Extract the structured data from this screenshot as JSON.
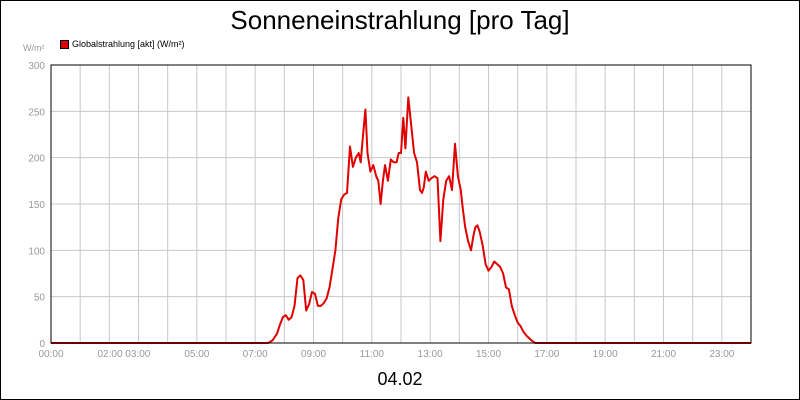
{
  "title": "Sonneneinstrahlung [pro Tag]",
  "date_label": "04.02",
  "unit_label": "W/m²",
  "legend_label": "Globalstrahlung [akt] (W/m²)",
  "colors": {
    "series": "#e10000",
    "grid": "#c8c8c8",
    "axis_text": "#999999",
    "frame": "#000000"
  },
  "chart_data": {
    "type": "line",
    "title": "Sonneneinstrahlung [pro Tag]",
    "xlabel": "04.02",
    "ylabel": "W/m²",
    "xlim": [
      0,
      24
    ],
    "ylim": [
      0,
      300
    ],
    "grid": true,
    "legend_position": "top-left",
    "y_ticks": [
      "0",
      "50",
      "100",
      "150",
      "200",
      "250",
      "300"
    ],
    "x_ticks": [
      {
        "x": 0,
        "label": "00:00"
      },
      {
        "x": 2.5,
        "label": "02:00 03:00"
      },
      {
        "x": 5,
        "label": "05:00"
      },
      {
        "x": 7,
        "label": "07:00"
      },
      {
        "x": 9,
        "label": "09:00"
      },
      {
        "x": 11,
        "label": "11:00"
      },
      {
        "x": 13,
        "label": "13:00"
      },
      {
        "x": 15,
        "label": "15:00"
      },
      {
        "x": 17,
        "label": "17:00"
      },
      {
        "x": 19,
        "label": "19:00"
      },
      {
        "x": 21,
        "label": "21:00"
      },
      {
        "x": 23,
        "label": "23:00"
      }
    ],
    "x_grid": [
      0,
      1,
      2,
      3,
      4,
      5,
      6,
      7,
      8,
      9,
      10,
      11,
      12,
      13,
      14,
      15,
      16,
      17,
      18,
      19,
      20,
      21,
      22,
      23,
      24
    ],
    "series": [
      {
        "name": "Globalstrahlung [akt] (W/m²)",
        "x": [
          0,
          7.45,
          7.6,
          7.75,
          7.85,
          7.95,
          8.05,
          8.15,
          8.25,
          8.35,
          8.45,
          8.55,
          8.65,
          8.75,
          8.85,
          8.95,
          9.05,
          9.15,
          9.25,
          9.35,
          9.45,
          9.55,
          9.65,
          9.75,
          9.85,
          9.95,
          10.05,
          10.15,
          10.25,
          10.35,
          10.45,
          10.55,
          10.62,
          10.7,
          10.78,
          10.85,
          10.95,
          11.05,
          11.15,
          11.22,
          11.3,
          11.38,
          11.45,
          11.55,
          11.65,
          11.75,
          11.85,
          11.92,
          12.0,
          12.08,
          12.15,
          12.25,
          12.35,
          12.45,
          12.55,
          12.65,
          12.72,
          12.78,
          12.85,
          12.95,
          13.05,
          13.15,
          13.25,
          13.35,
          13.45,
          13.55,
          13.65,
          13.75,
          13.85,
          13.95,
          14.05,
          14.12,
          14.2,
          14.3,
          14.4,
          14.48,
          14.55,
          14.62,
          14.7,
          14.8,
          14.9,
          15.0,
          15.1,
          15.2,
          15.3,
          15.4,
          15.5,
          15.6,
          15.7,
          15.8,
          15.9,
          16.0,
          16.1,
          16.2,
          16.3,
          16.4,
          16.5,
          16.6,
          16.7,
          16.8,
          16.9,
          17.0,
          17.1,
          17.2,
          17.3,
          17.4,
          17.5,
          17.65,
          24
        ],
        "y": [
          0,
          0,
          3,
          10,
          20,
          28,
          30,
          25,
          28,
          40,
          70,
          73,
          68,
          35,
          42,
          55,
          53,
          40,
          40,
          43,
          48,
          60,
          80,
          100,
          135,
          155,
          160,
          162,
          212,
          190,
          200,
          205,
          195,
          225,
          252,
          205,
          185,
          192,
          180,
          175,
          150,
          175,
          192,
          175,
          198,
          195,
          195,
          205,
          205,
          243,
          210,
          265,
          235,
          205,
          195,
          165,
          162,
          168,
          185,
          175,
          178,
          180,
          178,
          110,
          155,
          175,
          180,
          165,
          215,
          180,
          165,
          145,
          125,
          110,
          100,
          115,
          125,
          127,
          120,
          105,
          85,
          78,
          82,
          88,
          85,
          82,
          75,
          60,
          58,
          40,
          30,
          22,
          18,
          12,
          8,
          5,
          2,
          0,
          0,
          0,
          0,
          0,
          0,
          0,
          0,
          0,
          0,
          0,
          0
        ]
      }
    ]
  }
}
